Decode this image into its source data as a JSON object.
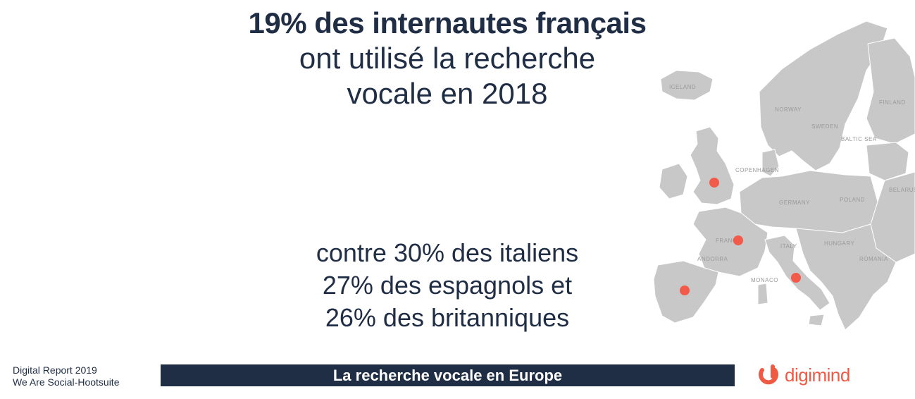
{
  "headline": {
    "line1": "19% des internautes français",
    "line2": "ont utilisé la recherche",
    "line3": "vocale en 2018"
  },
  "comparison": {
    "line1": "contre 30% des italiens",
    "line2": "27% des espagnols et",
    "line3": "26% des britanniques"
  },
  "source": {
    "line1": "Digital Report 2019",
    "line2": "We Are Social-Hootsuite"
  },
  "banner": {
    "title": "La recherche vocale en Europe"
  },
  "logo": {
    "text": "digimind",
    "icon": "digimind-logo-icon",
    "color": "#ef5a45"
  },
  "map": {
    "marker_color": "#f25a4a",
    "land_color": "#c8c8c8",
    "labels": {
      "iceland": "ICELAND",
      "norway": "NORWAY",
      "sweden": "SWEDEN",
      "finland": "FINLAND",
      "baltic": "BALTIC SEA",
      "germany": "GERMANY",
      "poland": "POLAND",
      "belarus": "BELARUS",
      "romania": "ROMANIA",
      "hungary": "HUNGARY",
      "andorra": "ANDORRA",
      "monaco": "MONACO",
      "copenhagen": "COPENHAGEN",
      "france": "FRANCE",
      "italy": "ITALY"
    }
  },
  "colors": {
    "text": "#1f2d45",
    "banner_bg": "#1f2d45",
    "accent": "#ef5a45"
  }
}
